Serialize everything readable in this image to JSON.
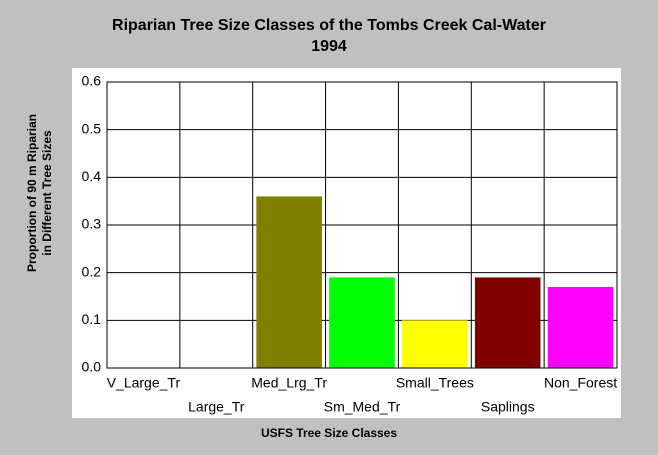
{
  "chart_data": {
    "type": "bar",
    "title": [
      "Riparian Tree Size Classes of the Tombs Creek Cal-Water",
      "1994"
    ],
    "x_label": "USFS Tree Size Classes",
    "y_label": [
      "Proportion of 90 m Riparian",
      "in Different Tree Sizes"
    ],
    "categories": [
      "V_Large_Tr",
      "Large_Tr",
      "Med_Lrg_Tr",
      "Sm_Med_Tr",
      "Small_Trees",
      "Saplings",
      "Non_Forest"
    ],
    "values": [
      0,
      0,
      0.36,
      0.19,
      0.1,
      0.19,
      0.17
    ],
    "colors": [
      null,
      null,
      "#808000",
      "#00ff00",
      "#ffff00",
      "#800000",
      "#ff00ff"
    ],
    "ylim": [
      0,
      0.6
    ],
    "yticks": [
      {
        "value": 0,
        "label": "0.0"
      },
      0.1,
      0.2,
      0.3,
      0.4,
      0.5,
      0.6
    ],
    "grid": true
  }
}
